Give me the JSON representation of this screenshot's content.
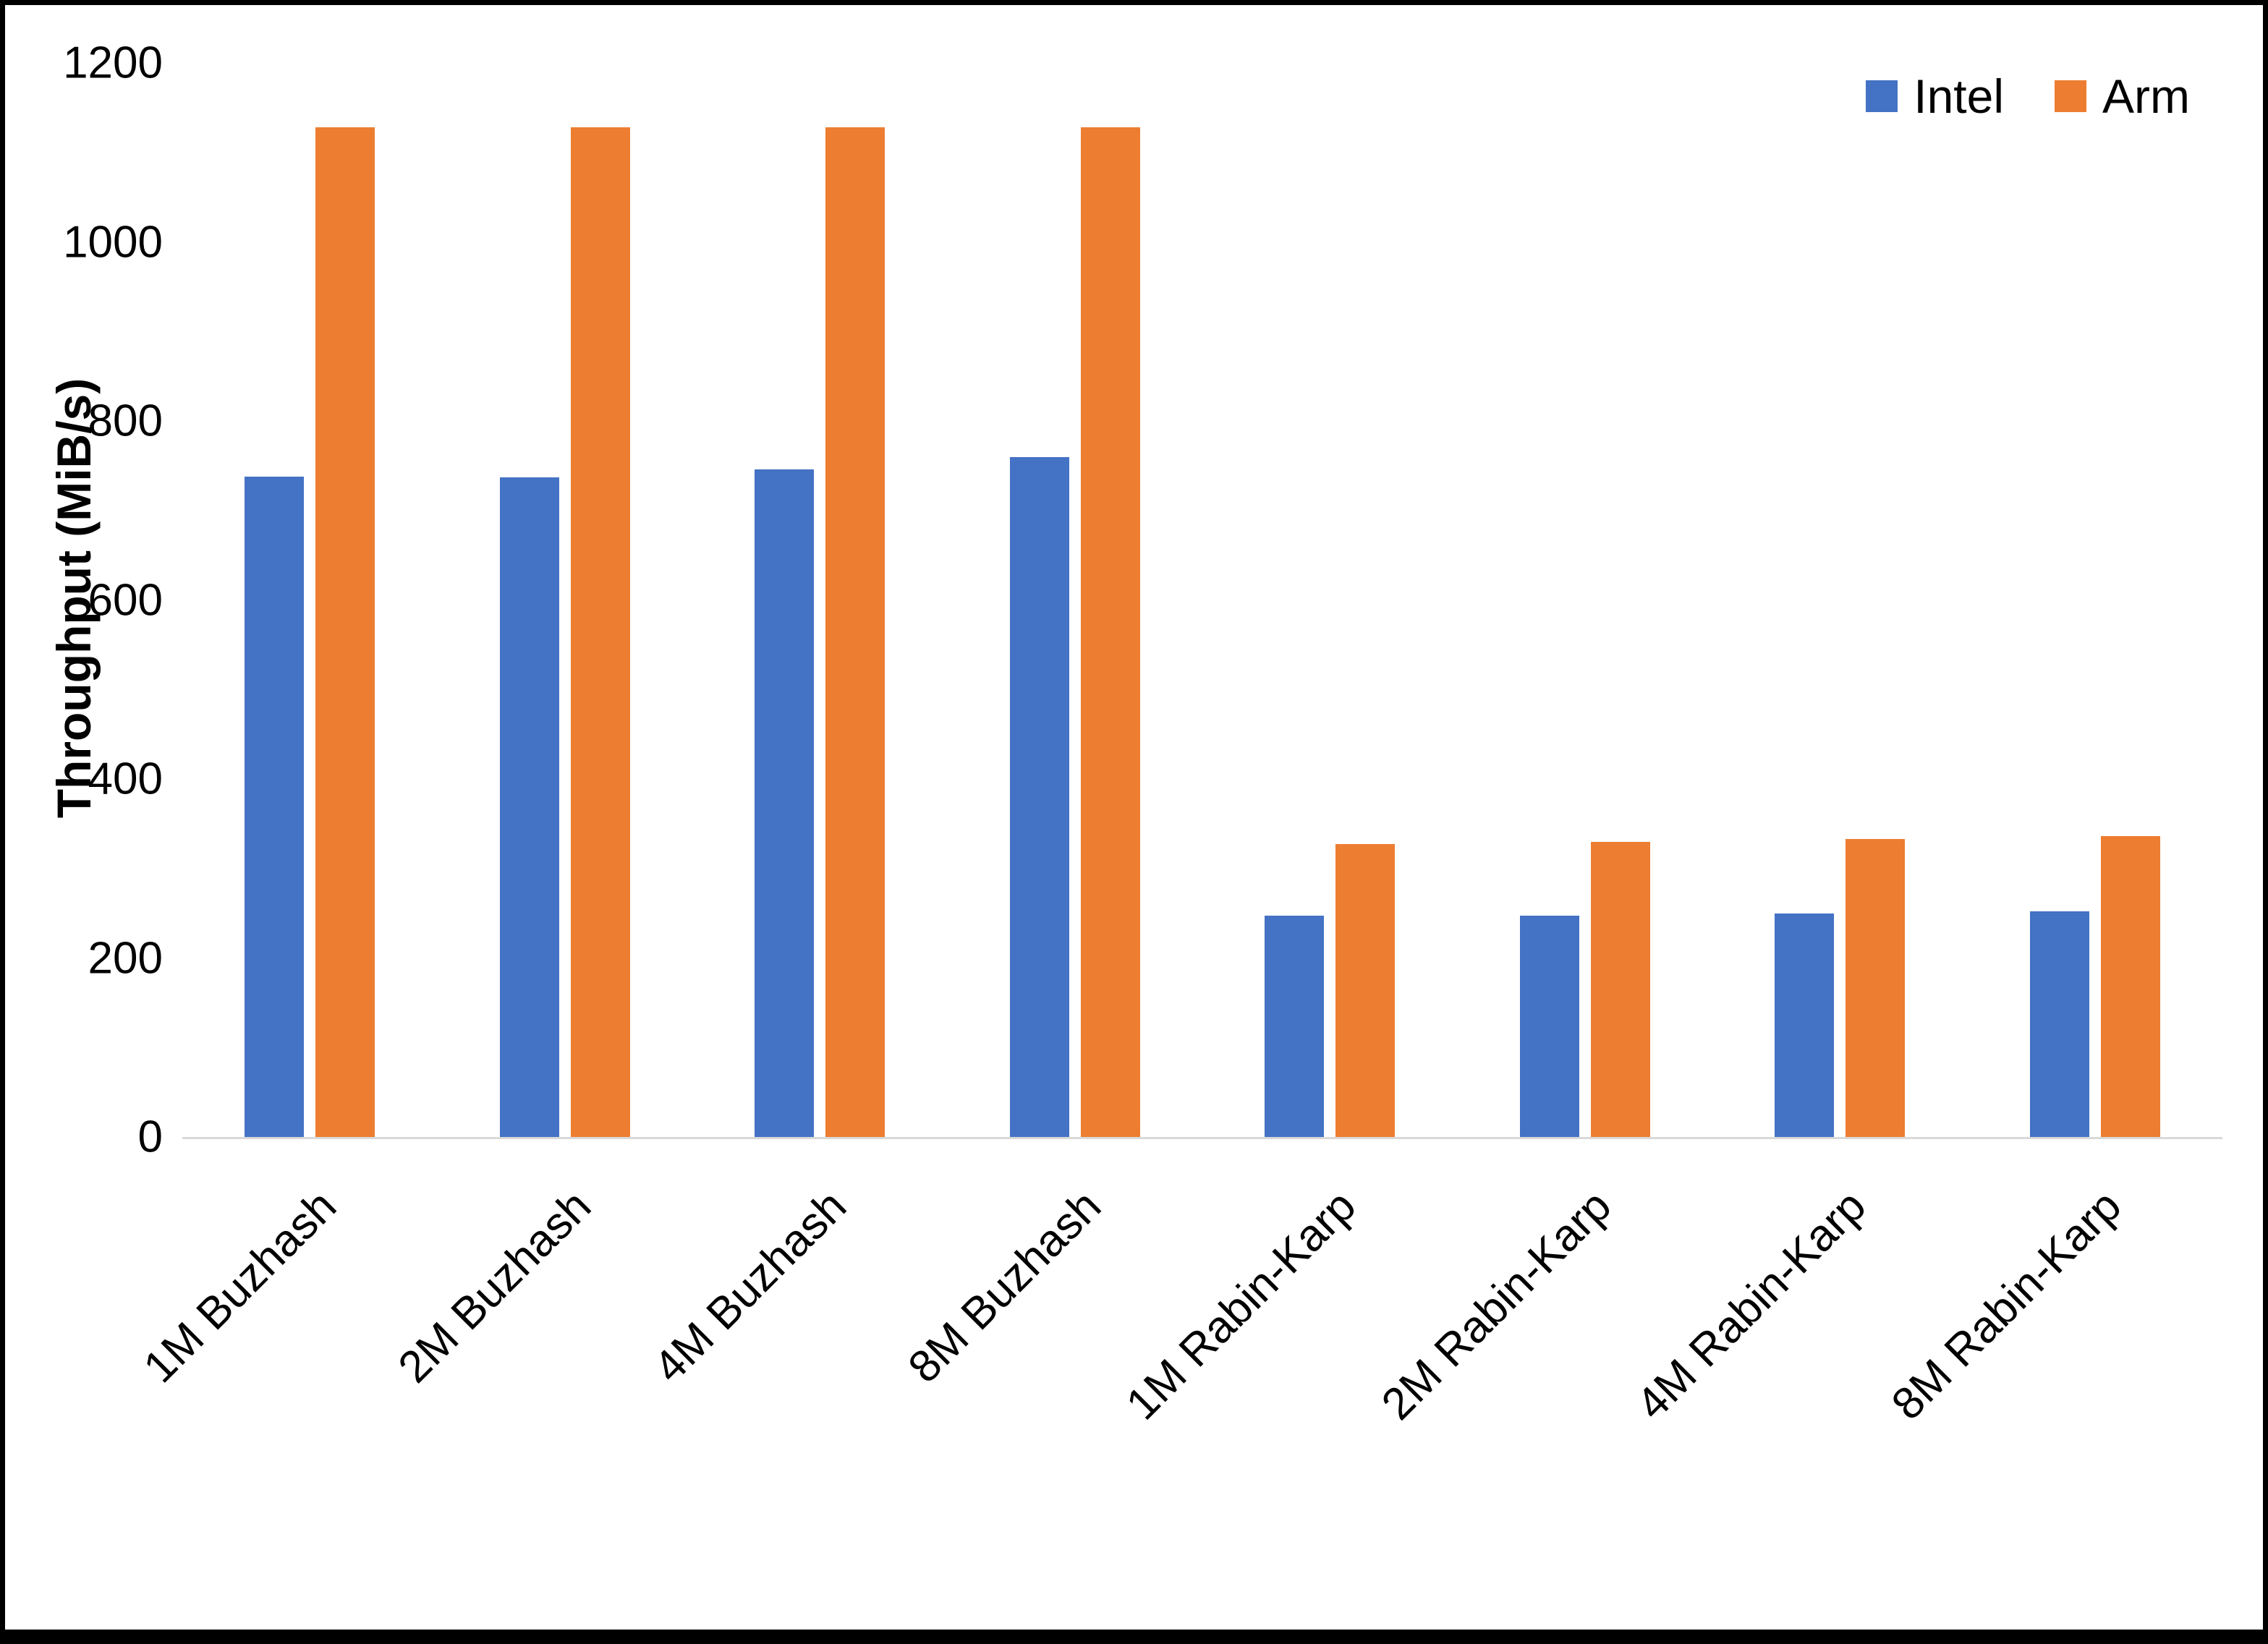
{
  "chart_data": {
    "type": "bar",
    "title": "",
    "xlabel": "",
    "ylabel": "Throughput (MiB/s)",
    "ylim": [
      0,
      1200
    ],
    "yticks": [
      0,
      200,
      400,
      600,
      800,
      1000,
      1200
    ],
    "grid": false,
    "legend_position": "top-right",
    "categories": [
      "1M Buzhash",
      "2M Buzhash",
      "4M Buzhash",
      "8M Buzhash",
      "1M Rabin-Karp",
      "2M Rabin-Karp",
      "4M Rabin-Karp",
      "8M Rabin-Karp"
    ],
    "series": [
      {
        "name": "Intel",
        "color": "#4472C4",
        "values": [
          738,
          737,
          746,
          760,
          247,
          247,
          250,
          252
        ]
      },
      {
        "name": "Arm",
        "color": "#ED7D31",
        "values": [
          1128,
          1128,
          1128,
          1128,
          327,
          330,
          333,
          336
        ]
      }
    ]
  }
}
